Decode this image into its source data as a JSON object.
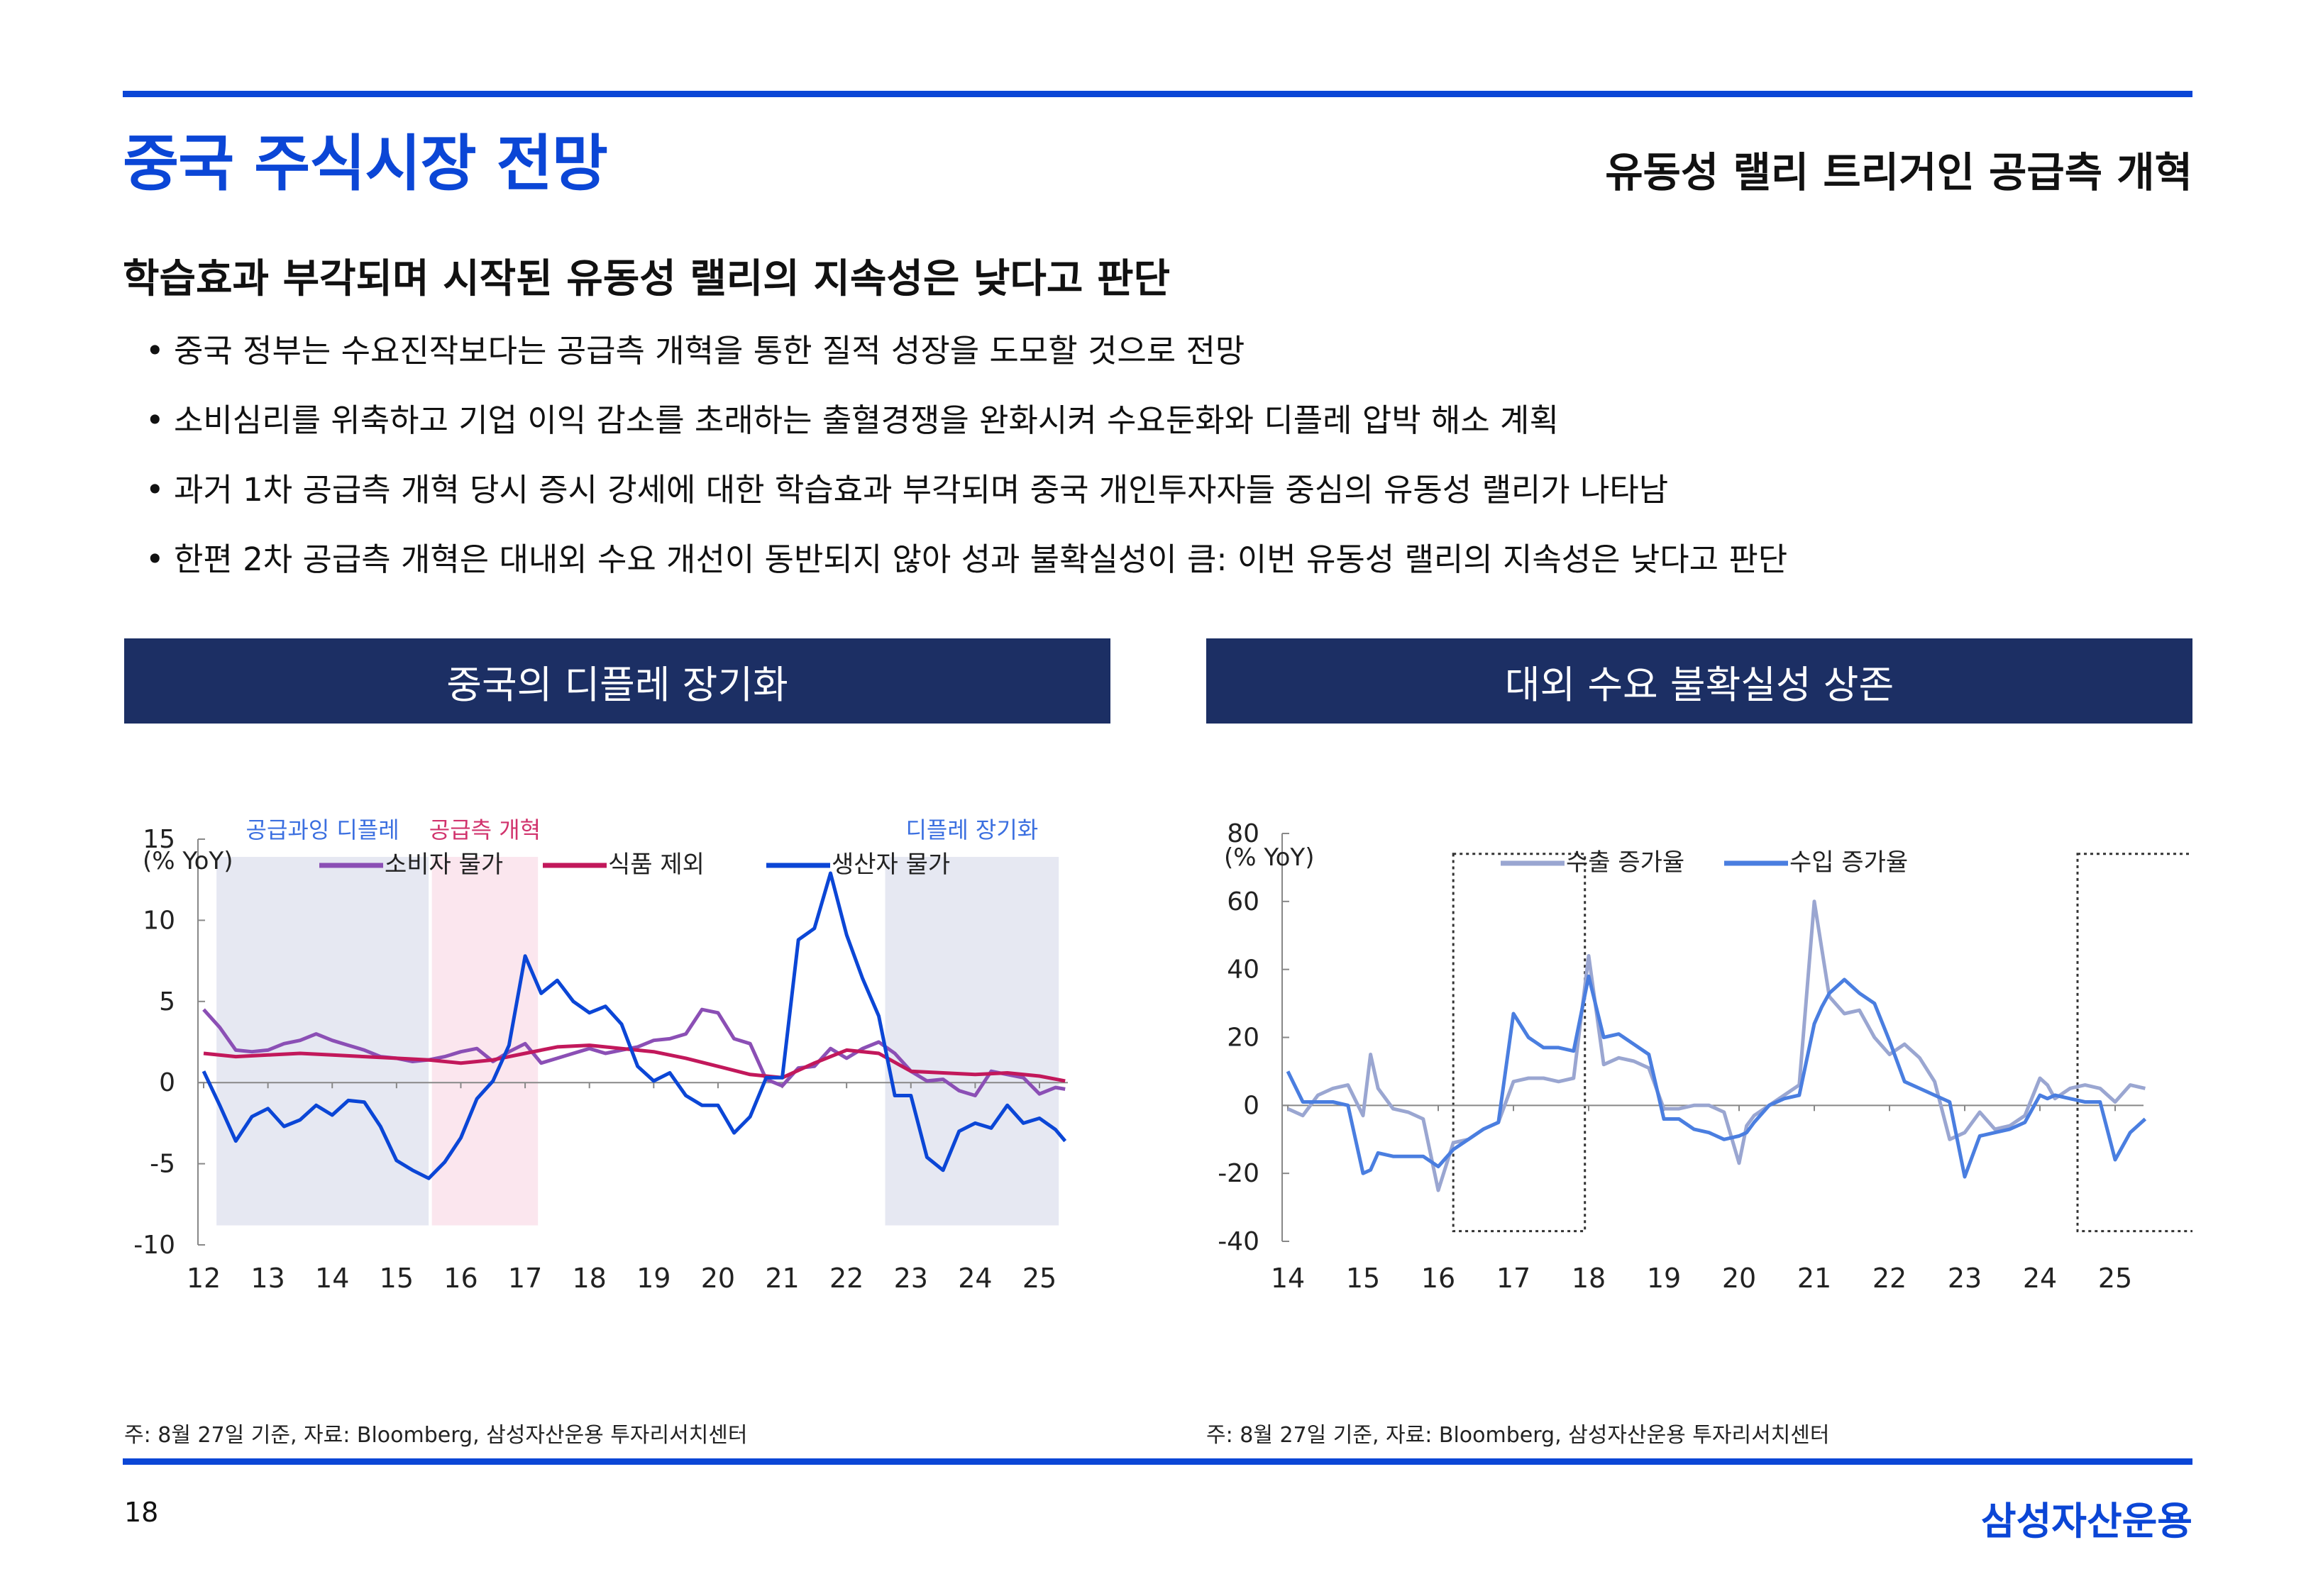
{
  "header": {
    "title": "중국 주식시장 전망",
    "section": "유동성 랠리 트리거인 공급측 개혁"
  },
  "headline": "학습효과 부각되며 시작된 유동성 랠리의 지속성은 낮다고 판단",
  "bullets": [
    "중국 정부는 수요진작보다는 공급측 개혁을 통한 질적 성장을 도모할 것으로 전망",
    "소비심리를 위축하고 기업 이익 감소를 초래하는 출혈경쟁을 완화시켜 수요둔화와 디플레 압박 해소 계획",
    "과거 1차 공급측 개혁 당시 증시 강세에 대한 학습효과 부각되며 중국 개인투자자들 중심의 유동성 랠리가 나타남",
    "한편 2차 공급측 개혁은 대내외 수요 개선이 동반되지 않아 성과 불확실성이 큼: 이번 유동성 랠리의 지속성은 낮다고 판단"
  ],
  "bullet_mark": "•",
  "chart_data": [
    {
      "type": "line",
      "header": "중국의 디플레 장기화",
      "unit_label": "(% YoY)",
      "categories": [
        "12",
        "13",
        "14",
        "15",
        "16",
        "17",
        "18",
        "19",
        "20",
        "21",
        "22",
        "23",
        "24",
        "25"
      ],
      "ylim": [
        -10,
        15
      ],
      "yticks": [
        15,
        10,
        5,
        0,
        -5,
        -10
      ],
      "ytick_labels": [
        "15",
        "10",
        "5",
        "0",
        "-5",
        "-10"
      ],
      "shaded_periods": [
        {
          "label": "공급과잉 디플레",
          "start": 12.2,
          "end": 15.5,
          "color": "#e6e8f2",
          "label_color": "#3b6fe0"
        },
        {
          "label": "공급측 개혁",
          "start": 15.55,
          "end": 17.2,
          "color": "#fbe6ee",
          "label_color": "#d1336d"
        },
        {
          "label": "디플레 장기화",
          "start": 22.6,
          "end": 25.3,
          "color": "#e6e8f2",
          "label_color": "#3b6fe0"
        }
      ],
      "series": [
        {
          "name": "소비자 물가",
          "color": "#8b4fb5",
          "x": [
            12.0,
            12.25,
            12.5,
            12.75,
            13.0,
            13.25,
            13.5,
            13.75,
            14.0,
            14.25,
            14.5,
            14.75,
            15.0,
            15.25,
            15.5,
            15.75,
            16.0,
            16.25,
            16.5,
            16.75,
            17.0,
            17.25,
            17.5,
            17.75,
            18.0,
            18.25,
            18.5,
            18.75,
            19.0,
            19.25,
            19.5,
            19.75,
            20.0,
            20.25,
            20.5,
            20.75,
            21.0,
            21.25,
            21.5,
            21.75,
            22.0,
            22.25,
            22.5,
            22.75,
            23.0,
            23.25,
            23.5,
            23.75,
            24.0,
            24.25,
            24.5,
            24.75,
            25.0,
            25.25,
            25.4
          ],
          "values": [
            4.5,
            3.4,
            2.0,
            1.9,
            2.0,
            2.4,
            2.6,
            3.0,
            2.6,
            2.3,
            2.0,
            1.6,
            1.5,
            1.3,
            1.4,
            1.6,
            1.9,
            2.1,
            1.3,
            1.9,
            2.4,
            1.2,
            1.5,
            1.8,
            2.1,
            1.8,
            2.0,
            2.2,
            2.6,
            2.7,
            3.0,
            4.5,
            4.3,
            2.7,
            2.4,
            0.2,
            -0.2,
            0.9,
            1.0,
            2.1,
            1.5,
            2.1,
            2.5,
            1.8,
            0.7,
            0.1,
            0.2,
            -0.5,
            -0.8,
            0.7,
            0.5,
            0.3,
            -0.7,
            -0.3,
            -0.4
          ]
        },
        {
          "name": "식품 제외",
          "color": "#c2185b",
          "x": [
            12.0,
            12.5,
            13.0,
            13.5,
            14.0,
            14.5,
            15.0,
            15.5,
            16.0,
            16.5,
            17.0,
            17.5,
            18.0,
            18.5,
            19.0,
            19.5,
            20.0,
            20.5,
            21.0,
            21.5,
            22.0,
            22.5,
            23.0,
            23.5,
            24.0,
            24.5,
            25.0,
            25.4
          ],
          "values": [
            1.8,
            1.6,
            1.7,
            1.8,
            1.7,
            1.6,
            1.5,
            1.4,
            1.2,
            1.4,
            1.8,
            2.2,
            2.3,
            2.1,
            1.9,
            1.5,
            1.0,
            0.5,
            0.3,
            1.2,
            2.0,
            1.8,
            0.7,
            0.6,
            0.5,
            0.6,
            0.4,
            0.1
          ]
        },
        {
          "name": "생산자 물가",
          "color": "#0b46d6",
          "x": [
            12.0,
            12.25,
            12.5,
            12.75,
            13.0,
            13.25,
            13.5,
            13.75,
            14.0,
            14.25,
            14.5,
            14.75,
            15.0,
            15.25,
            15.5,
            15.75,
            16.0,
            16.25,
            16.5,
            16.75,
            17.0,
            17.25,
            17.5,
            17.75,
            18.0,
            18.25,
            18.5,
            18.75,
            19.0,
            19.25,
            19.5,
            19.75,
            20.0,
            20.25,
            20.5,
            20.75,
            21.0,
            21.25,
            21.5,
            21.75,
            22.0,
            22.25,
            22.5,
            22.75,
            23.0,
            23.25,
            23.5,
            23.75,
            24.0,
            24.25,
            24.5,
            24.75,
            25.0,
            25.25,
            25.4
          ],
          "values": [
            0.7,
            -1.4,
            -3.6,
            -2.1,
            -1.6,
            -2.7,
            -2.3,
            -1.4,
            -2.0,
            -1.1,
            -1.2,
            -2.7,
            -4.8,
            -5.4,
            -5.9,
            -4.9,
            -3.4,
            -1.0,
            0.1,
            2.3,
            7.8,
            5.5,
            6.3,
            5.0,
            4.3,
            4.7,
            3.6,
            1.0,
            0.1,
            0.6,
            -0.8,
            -1.4,
            -1.4,
            -3.1,
            -2.1,
            0.3,
            0.3,
            8.8,
            9.5,
            12.9,
            9.1,
            6.4,
            4.1,
            -0.8,
            -0.8,
            -4.6,
            -5.4,
            -3.0,
            -2.5,
            -2.8,
            -1.4,
            -2.5,
            -2.2,
            -2.9,
            -3.6
          ]
        }
      ]
    },
    {
      "type": "line",
      "header": "대외 수요 불확실성 상존",
      "unit_label": "(% YoY)",
      "categories": [
        "14",
        "15",
        "16",
        "17",
        "18",
        "19",
        "20",
        "21",
        "22",
        "23",
        "24",
        "25"
      ],
      "ylim": [
        -40,
        80
      ],
      "yticks": [
        80,
        60,
        40,
        20,
        0,
        -20,
        -40
      ],
      "ytick_labels": [
        "80",
        "60",
        "40",
        "20",
        "0",
        "-20",
        "-40"
      ],
      "highlight_boxes": [
        {
          "start": 16.2,
          "end": 17.95,
          "ymin": -37,
          "ymax": 74
        },
        {
          "start": 24.5,
          "end": 26.2,
          "ymin": -37,
          "ymax": 74
        }
      ],
      "series": [
        {
          "name": "수출 증가율",
          "color": "#9aa6d1",
          "x": [
            14.0,
            14.2,
            14.4,
            14.6,
            14.8,
            15.0,
            15.1,
            15.2,
            15.4,
            15.6,
            15.8,
            16.0,
            16.2,
            16.4,
            16.6,
            16.8,
            17.0,
            17.2,
            17.4,
            17.6,
            17.8,
            18.0,
            18.2,
            18.4,
            18.6,
            18.8,
            19.0,
            19.2,
            19.4,
            19.6,
            19.8,
            20.0,
            20.1,
            20.2,
            20.4,
            20.6,
            20.8,
            21.0,
            21.1,
            21.2,
            21.4,
            21.6,
            21.8,
            22.0,
            22.2,
            22.4,
            22.6,
            22.8,
            23.0,
            23.2,
            23.4,
            23.6,
            23.8,
            24.0,
            24.1,
            24.2,
            24.4,
            24.6,
            24.8,
            25.0,
            25.2,
            25.4
          ],
          "values": [
            -1.0,
            -3.0,
            3.0,
            5.0,
            6.0,
            -3.0,
            15.0,
            5.0,
            -1.0,
            -2.0,
            -4.0,
            -25.0,
            -11.0,
            -10.0,
            -7.0,
            -5.0,
            7.0,
            8.0,
            8.0,
            7.0,
            8.0,
            44.0,
            12.0,
            14.0,
            13.0,
            11.0,
            -1.0,
            -1.0,
            0.0,
            0.0,
            -2.0,
            -17.0,
            -6.0,
            -3.0,
            0.0,
            3.0,
            6.0,
            60.0,
            46.0,
            32.0,
            27.0,
            28.0,
            20.0,
            15.0,
            18.0,
            14.0,
            7.0,
            -10.0,
            -8.0,
            -2.0,
            -7.0,
            -6.0,
            -3.0,
            8.0,
            6.0,
            2.0,
            5.0,
            6.0,
            5.0,
            1.0,
            6.0,
            5.0
          ]
        },
        {
          "name": "수입 증가율",
          "color": "#4a7ee0",
          "x": [
            14.0,
            14.2,
            14.4,
            14.6,
            14.8,
            15.0,
            15.1,
            15.2,
            15.4,
            15.6,
            15.8,
            16.0,
            16.2,
            16.4,
            16.6,
            16.8,
            17.0,
            17.2,
            17.4,
            17.6,
            17.8,
            18.0,
            18.2,
            18.4,
            18.6,
            18.8,
            19.0,
            19.2,
            19.4,
            19.6,
            19.8,
            20.0,
            20.1,
            20.2,
            20.4,
            20.6,
            20.8,
            21.0,
            21.1,
            21.2,
            21.4,
            21.6,
            21.8,
            22.0,
            22.2,
            22.4,
            22.6,
            22.8,
            23.0,
            23.2,
            23.4,
            23.6,
            23.8,
            24.0,
            24.1,
            24.2,
            24.4,
            24.6,
            24.8,
            25.0,
            25.2,
            25.4
          ],
          "values": [
            10.0,
            1.0,
            1.0,
            1.0,
            0.0,
            -20.0,
            -19.0,
            -14.0,
            -15.0,
            -15.0,
            -15.0,
            -18.0,
            -13.0,
            -10.0,
            -7.0,
            -5.0,
            27.0,
            20.0,
            17.0,
            17.0,
            16.0,
            38.0,
            20.0,
            21.0,
            18.0,
            15.0,
            -4.0,
            -4.0,
            -7.0,
            -8.0,
            -10.0,
            -9.0,
            -8.0,
            -5.0,
            0.0,
            2.0,
            3.0,
            24.0,
            29.0,
            33.0,
            37.0,
            33.0,
            30.0,
            19.0,
            7.0,
            5.0,
            3.0,
            1.0,
            -21.0,
            -9.0,
            -8.0,
            -7.0,
            -5.0,
            3.0,
            2.0,
            3.0,
            2.0,
            1.0,
            1.0,
            -16.0,
            -8.0,
            -4.0
          ]
        }
      ]
    }
  ],
  "sources": {
    "left": "주: 8월 27일 기준, 자료: Bloomberg, 삼성자산운용 투자리서치센터",
    "right": "주: 8월 27일 기준, 자료: Bloomberg, 삼성자산운용 투자리서치센터"
  },
  "footer": {
    "page_number": "18",
    "brand": "삼성자산운용"
  },
  "colors": {
    "accent": "#0b46d6",
    "chart_header_bg": "#1c2f64"
  }
}
